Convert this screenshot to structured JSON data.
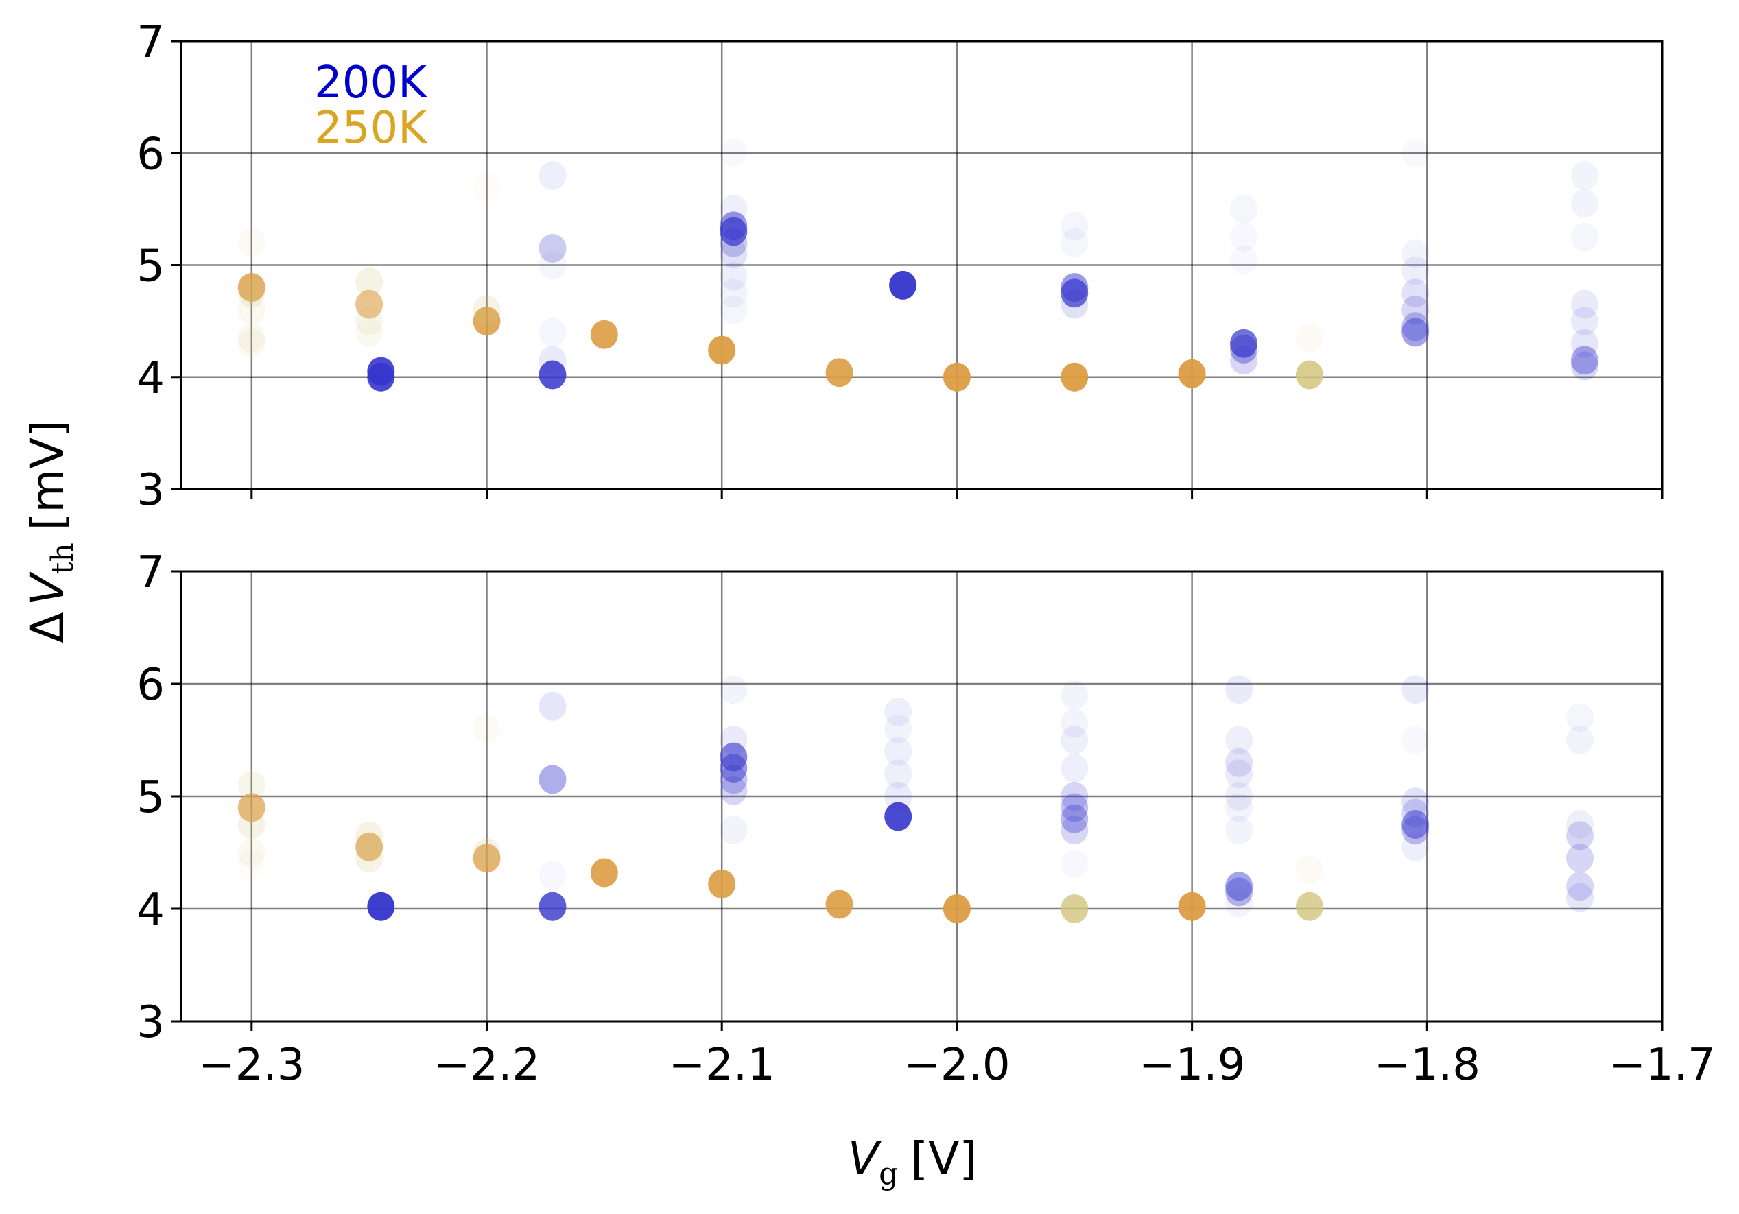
{
  "chart_data": {
    "type": "scatter",
    "xlabel": {
      "var": "V",
      "sub": "g",
      "unit": "[V]"
    },
    "ylabel": {
      "symbol": "Δ",
      "var": "V",
      "sub": "th",
      "unit": "[mV]"
    },
    "xlim": [
      -2.33,
      -1.7
    ],
    "ylim": [
      3,
      7
    ],
    "xticks": [
      -2.3,
      -2.2,
      -2.1,
      -2.0,
      -1.9,
      -1.8,
      -1.7
    ],
    "xtick_labels": [
      "−2.3",
      "−2.2",
      "−2.1",
      "−2.0",
      "−1.9",
      "−1.8",
      "−1.7"
    ],
    "yticks": [
      3,
      4,
      5,
      6,
      7
    ],
    "ytick_labels": [
      "3",
      "4",
      "5",
      "6",
      "7"
    ],
    "grid": true,
    "legend": {
      "placement": "top-left",
      "entries": [
        {
          "label": "200K",
          "color": "#0000cc"
        },
        {
          "label": "250K",
          "color": "#daa520"
        }
      ]
    },
    "colors": {
      "200K": "#3535cc",
      "250K": "#dc9c42",
      "250K_light": "#d2c47c"
    },
    "panels": [
      {
        "name": "top",
        "series": [
          {
            "name": "200K",
            "points": [
              [
                -2.245,
                4.05,
                0.9
              ],
              [
                -2.245,
                4.0,
                0.9
              ],
              [
                -2.172,
                4.02,
                0.85
              ],
              [
                -2.172,
                5.15,
                0.25
              ],
              [
                -2.172,
                5.8,
                0.08
              ],
              [
                -2.172,
                4.4,
                0.05
              ],
              [
                -2.172,
                4.15,
                0.1
              ],
              [
                -2.172,
                5.0,
                0.05
              ],
              [
                -2.095,
                5.3,
                0.7
              ],
              [
                -2.095,
                5.35,
                0.5
              ],
              [
                -2.095,
                5.2,
                0.25
              ],
              [
                -2.095,
                5.1,
                0.15
              ],
              [
                -2.095,
                4.9,
                0.08
              ],
              [
                -2.095,
                4.75,
                0.06
              ],
              [
                -2.095,
                4.6,
                0.05
              ],
              [
                -2.095,
                5.5,
                0.08
              ],
              [
                -2.095,
                6.0,
                0.03
              ],
              [
                -2.023,
                4.82,
                0.95
              ],
              [
                -1.95,
                4.75,
                0.7
              ],
              [
                -1.95,
                4.8,
                0.5
              ],
              [
                -1.95,
                4.65,
                0.15
              ],
              [
                -1.95,
                5.2,
                0.05
              ],
              [
                -1.95,
                5.35,
                0.05
              ],
              [
                -1.878,
                4.3,
                0.7
              ],
              [
                -1.878,
                4.25,
                0.4
              ],
              [
                -1.878,
                4.15,
                0.2
              ],
              [
                -1.878,
                5.5,
                0.05
              ],
              [
                -1.878,
                5.25,
                0.04
              ],
              [
                -1.878,
                5.05,
                0.04
              ],
              [
                -1.805,
                4.4,
                0.45
              ],
              [
                -1.805,
                4.45,
                0.3
              ],
              [
                -1.805,
                4.6,
                0.2
              ],
              [
                -1.805,
                4.75,
                0.15
              ],
              [
                -1.805,
                4.95,
                0.08
              ],
              [
                -1.805,
                5.1,
                0.06
              ],
              [
                -1.805,
                6.0,
                0.03
              ],
              [
                -1.733,
                4.15,
                0.4
              ],
              [
                -1.733,
                4.1,
                0.2
              ],
              [
                -1.733,
                4.3,
                0.12
              ],
              [
                -1.733,
                4.5,
                0.1
              ],
              [
                -1.733,
                4.65,
                0.1
              ],
              [
                -1.733,
                5.25,
                0.05
              ],
              [
                -1.733,
                5.55,
                0.06
              ],
              [
                -1.733,
                5.8,
                0.06
              ]
            ]
          },
          {
            "name": "250K",
            "points": [
              [
                -2.3,
                4.8,
                0.8,
                0
              ],
              [
                -2.3,
                4.75,
                0.2,
                1
              ],
              [
                -2.3,
                4.6,
                0.12,
                1
              ],
              [
                -2.3,
                4.35,
                0.12,
                1
              ],
              [
                -2.3,
                4.3,
                0.1,
                1
              ],
              [
                -2.3,
                5.2,
                0.05,
                0
              ],
              [
                -2.25,
                4.65,
                0.6,
                0
              ],
              [
                -2.25,
                4.85,
                0.2,
                1
              ],
              [
                -2.25,
                4.5,
                0.15,
                1
              ],
              [
                -2.25,
                4.4,
                0.1,
                1
              ],
              [
                -2.2,
                4.5,
                0.85,
                0
              ],
              [
                -2.2,
                4.6,
                0.2,
                1
              ],
              [
                -2.2,
                5.7,
                0.04,
                0
              ],
              [
                -2.15,
                4.38,
                0.9,
                0
              ],
              [
                -2.1,
                4.24,
                0.95,
                0
              ],
              [
                -2.05,
                4.04,
                0.9,
                0
              ],
              [
                -2.0,
                4.0,
                0.95,
                0
              ],
              [
                -1.95,
                4.0,
                0.95,
                0
              ],
              [
                -1.9,
                4.03,
                0.95,
                0
              ],
              [
                -1.85,
                4.02,
                0.85,
                1
              ],
              [
                -1.85,
                4.35,
                0.06,
                0
              ]
            ]
          }
        ]
      },
      {
        "name": "bottom",
        "series": [
          {
            "name": "200K",
            "points": [
              [
                -2.245,
                4.02,
                0.95
              ],
              [
                -2.172,
                4.02,
                0.8
              ],
              [
                -2.172,
                5.15,
                0.4
              ],
              [
                -2.172,
                5.8,
                0.12
              ],
              [
                -2.172,
                4.3,
                0.04
              ],
              [
                -2.095,
                5.35,
                0.6
              ],
              [
                -2.095,
                5.25,
                0.5
              ],
              [
                -2.095,
                5.15,
                0.3
              ],
              [
                -2.095,
                5.05,
                0.2
              ],
              [
                -2.095,
                4.7,
                0.06
              ],
              [
                -2.095,
                5.5,
                0.1
              ],
              [
                -2.095,
                5.95,
                0.06
              ],
              [
                -2.025,
                4.82,
                0.9
              ],
              [
                -2.025,
                5.0,
                0.1
              ],
              [
                -2.025,
                5.2,
                0.08
              ],
              [
                -2.025,
                5.4,
                0.08
              ],
              [
                -2.025,
                5.6,
                0.06
              ],
              [
                -2.025,
                5.75,
                0.08
              ],
              [
                -1.95,
                4.9,
                0.3
              ],
              [
                -1.95,
                4.8,
                0.35
              ],
              [
                -1.95,
                4.7,
                0.2
              ],
              [
                -1.95,
                5.0,
                0.2
              ],
              [
                -1.95,
                5.25,
                0.08
              ],
              [
                -1.95,
                5.5,
                0.08
              ],
              [
                -1.95,
                5.65,
                0.06
              ],
              [
                -1.95,
                5.9,
                0.06
              ],
              [
                -1.95,
                4.4,
                0.04
              ],
              [
                -1.88,
                4.2,
                0.45
              ],
              [
                -1.88,
                4.15,
                0.35
              ],
              [
                -1.88,
                5.3,
                0.15
              ],
              [
                -1.88,
                5.2,
                0.1
              ],
              [
                -1.88,
                5.0,
                0.08
              ],
              [
                -1.88,
                4.9,
                0.06
              ],
              [
                -1.88,
                4.7,
                0.06
              ],
              [
                -1.88,
                5.5,
                0.08
              ],
              [
                -1.88,
                5.95,
                0.1
              ],
              [
                -1.88,
                4.05,
                0.06
              ],
              [
                -1.805,
                4.75,
                0.5
              ],
              [
                -1.805,
                4.7,
                0.3
              ],
              [
                -1.805,
                4.85,
                0.2
              ],
              [
                -1.805,
                4.95,
                0.15
              ],
              [
                -1.805,
                5.95,
                0.1
              ],
              [
                -1.805,
                4.55,
                0.08
              ],
              [
                -1.805,
                5.5,
                0.03
              ],
              [
                -1.735,
                4.65,
                0.2
              ],
              [
                -1.735,
                4.45,
                0.2
              ],
              [
                -1.735,
                4.2,
                0.2
              ],
              [
                -1.735,
                4.1,
                0.12
              ],
              [
                -1.735,
                4.75,
                0.08
              ],
              [
                -1.735,
                5.5,
                0.06
              ],
              [
                -1.735,
                5.7,
                0.05
              ]
            ]
          },
          {
            "name": "250K",
            "points": [
              [
                -2.3,
                4.9,
                0.7,
                0
              ],
              [
                -2.3,
                5.1,
                0.15,
                1
              ],
              [
                -2.3,
                4.75,
                0.2,
                1
              ],
              [
                -2.3,
                4.5,
                0.1,
                1
              ],
              [
                -2.3,
                4.4,
                0.05,
                1
              ],
              [
                -2.25,
                4.55,
                0.7,
                0
              ],
              [
                -2.25,
                4.45,
                0.2,
                1
              ],
              [
                -2.25,
                4.65,
                0.2,
                1
              ],
              [
                -2.2,
                4.45,
                0.75,
                0
              ],
              [
                -2.2,
                4.5,
                0.2,
                1
              ],
              [
                -2.2,
                5.6,
                0.05,
                0
              ],
              [
                -2.15,
                4.32,
                0.9,
                0
              ],
              [
                -2.1,
                4.22,
                0.9,
                0
              ],
              [
                -2.05,
                4.04,
                0.9,
                0
              ],
              [
                -2.0,
                4.0,
                0.95,
                0
              ],
              [
                -1.95,
                4.0,
                0.8,
                1
              ],
              [
                -1.9,
                4.02,
                0.95,
                0
              ],
              [
                -1.85,
                4.02,
                0.8,
                1
              ],
              [
                -1.85,
                4.35,
                0.06,
                0
              ]
            ]
          }
        ]
      }
    ]
  }
}
